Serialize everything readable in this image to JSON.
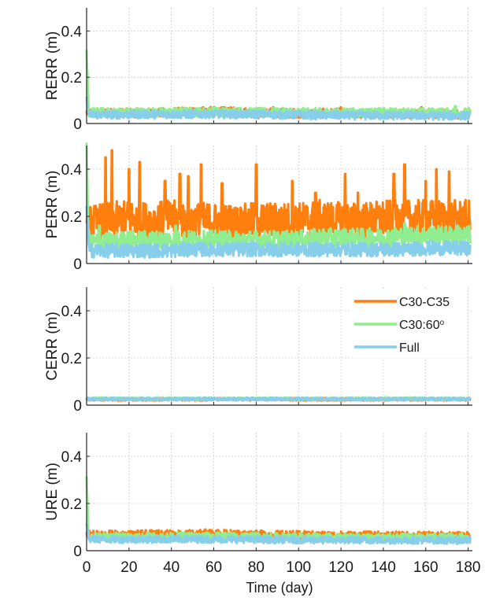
{
  "chart_data": [
    {
      "type": "line",
      "ylabel": "RERR (m)",
      "xlim": [
        0,
        182
      ],
      "ylim": [
        0,
        0.5
      ],
      "yticks": [
        "0",
        "0.2",
        "0.4"
      ],
      "grid": true,
      "x_days": [
        0,
        1,
        2,
        3,
        10,
        20,
        30,
        40,
        50,
        60,
        70,
        80,
        90,
        100,
        110,
        120,
        130,
        140,
        150,
        160,
        170,
        181
      ],
      "series": [
        {
          "name": "C30-C35",
          "color": "#ff7f0e",
          "mean": [
            0.05,
            0.045,
            0.045,
            0.045,
            0.045,
            0.046,
            0.047,
            0.048,
            0.05,
            0.052,
            0.05,
            0.048,
            0.046,
            0.045,
            0.044,
            0.044,
            0.043,
            0.043,
            0.042,
            0.042,
            0.041,
            0.04
          ],
          "spread": 0.02,
          "spikes": [
            [
              36,
              0.065
            ],
            [
              55,
              0.07
            ],
            [
              88,
              0.07
            ],
            [
              120,
              0.07
            ],
            [
              158,
              0.07
            ]
          ]
        },
        {
          "name": "C30:60°",
          "color": "#90ee90",
          "mean": [
            0.3,
            0.05,
            0.048,
            0.048,
            0.048,
            0.048,
            0.048,
            0.048,
            0.05,
            0.05,
            0.05,
            0.048,
            0.048,
            0.048,
            0.047,
            0.047,
            0.047,
            0.047,
            0.047,
            0.047,
            0.047,
            0.047
          ],
          "spread": 0.02,
          "spikes": [
            [
              3,
              0.06
            ],
            [
              10,
              0.065
            ],
            [
              84,
              0.065
            ],
            [
              174,
              0.075
            ]
          ]
        },
        {
          "name": "Full",
          "color": "#87ceeb",
          "mean": [
            0.1,
            0.04,
            0.038,
            0.038,
            0.038,
            0.039,
            0.04,
            0.04,
            0.04,
            0.041,
            0.04,
            0.04,
            0.038,
            0.037,
            0.036,
            0.036,
            0.035,
            0.035,
            0.035,
            0.034,
            0.034,
            0.034
          ],
          "spread": 0.018,
          "spikes": []
        }
      ]
    },
    {
      "type": "line",
      "ylabel": "PERR (m)",
      "xlim": [
        0,
        182
      ],
      "ylim": [
        0,
        0.5
      ],
      "yticks": [
        "0",
        "0.2",
        "0.4"
      ],
      "grid": true,
      "x_days": [
        0,
        1,
        2,
        3,
        10,
        20,
        30,
        40,
        50,
        60,
        70,
        80,
        90,
        100,
        110,
        120,
        130,
        140,
        150,
        160,
        170,
        181
      ],
      "series": [
        {
          "name": "C30-C35",
          "color": "#ff7f0e",
          "mean": [
            0.25,
            0.16,
            0.17,
            0.17,
            0.18,
            0.19,
            0.18,
            0.19,
            0.18,
            0.18,
            0.17,
            0.18,
            0.18,
            0.18,
            0.19,
            0.18,
            0.18,
            0.19,
            0.19,
            0.19,
            0.19,
            0.19
          ],
          "spread": 0.08,
          "spikes": [
            [
              9,
              0.45
            ],
            [
              12,
              0.48
            ],
            [
              20,
              0.4
            ],
            [
              25,
              0.43
            ],
            [
              37,
              0.35
            ],
            [
              44,
              0.38
            ],
            [
              48,
              0.37
            ],
            [
              54,
              0.42
            ],
            [
              64,
              0.34
            ],
            [
              80,
              0.42
            ],
            [
              97,
              0.35
            ],
            [
              108,
              0.3
            ],
            [
              122,
              0.38
            ],
            [
              128,
              0.3
            ],
            [
              145,
              0.38
            ],
            [
              150,
              0.42
            ],
            [
              160,
              0.35
            ],
            [
              165,
              0.4
            ],
            [
              171,
              0.39
            ]
          ]
        },
        {
          "name": "C30:60°",
          "color": "#90ee90",
          "mean": [
            0.48,
            0.1,
            0.09,
            0.09,
            0.09,
            0.1,
            0.1,
            0.1,
            0.1,
            0.1,
            0.1,
            0.1,
            0.1,
            0.1,
            0.11,
            0.11,
            0.11,
            0.11,
            0.12,
            0.12,
            0.12,
            0.12
          ],
          "spread": 0.04,
          "spikes": [
            [
              6,
              0.16
            ],
            [
              42,
              0.16
            ],
            [
              150,
              0.17
            ],
            [
              175,
              0.16
            ]
          ]
        },
        {
          "name": "Full",
          "color": "#87ceeb",
          "mean": [
            0.25,
            0.06,
            0.055,
            0.055,
            0.055,
            0.055,
            0.055,
            0.055,
            0.06,
            0.06,
            0.06,
            0.06,
            0.06,
            0.06,
            0.06,
            0.06,
            0.06,
            0.06,
            0.06,
            0.065,
            0.065,
            0.065
          ],
          "spread": 0.03,
          "spikes": []
        }
      ]
    },
    {
      "type": "line",
      "ylabel": "CERR (m)",
      "xlim": [
        0,
        182
      ],
      "ylim": [
        0,
        0.5
      ],
      "yticks": [
        "0",
        "0.2",
        "0.4"
      ],
      "grid": true,
      "x_days": [
        0,
        1,
        2,
        3,
        10,
        20,
        30,
        40,
        50,
        60,
        70,
        80,
        90,
        100,
        110,
        120,
        130,
        140,
        150,
        160,
        170,
        181
      ],
      "series": [
        {
          "name": "C30-C35",
          "color": "#ff7f0e",
          "mean": [
            0.025,
            0.025,
            0.025,
            0.025,
            0.025,
            0.025,
            0.025,
            0.025,
            0.025,
            0.025,
            0.025,
            0.025,
            0.025,
            0.025,
            0.025,
            0.025,
            0.025,
            0.025,
            0.025,
            0.025,
            0.025,
            0.025
          ],
          "spread": 0.006,
          "spikes": []
        },
        {
          "name": "C30:60°",
          "color": "#90ee90",
          "mean": [
            0.027,
            0.027,
            0.027,
            0.027,
            0.027,
            0.027,
            0.027,
            0.027,
            0.027,
            0.027,
            0.027,
            0.027,
            0.027,
            0.027,
            0.027,
            0.027,
            0.027,
            0.027,
            0.027,
            0.027,
            0.027,
            0.027
          ],
          "spread": 0.006,
          "spikes": []
        },
        {
          "name": "Full",
          "color": "#87ceeb",
          "mean": [
            0.026,
            0.026,
            0.026,
            0.026,
            0.026,
            0.026,
            0.026,
            0.026,
            0.026,
            0.026,
            0.026,
            0.026,
            0.026,
            0.026,
            0.026,
            0.026,
            0.026,
            0.026,
            0.026,
            0.026,
            0.026,
            0.026
          ],
          "spread": 0.006,
          "spikes": []
        }
      ],
      "legend": {
        "location": "top-right",
        "entries": [
          "C30-C35",
          "C30:60",
          "Full"
        ],
        "superscript": "o"
      }
    },
    {
      "type": "line",
      "ylabel": "URE (m)",
      "xlabel": "Time (day)",
      "xlim": [
        0,
        182
      ],
      "ylim": [
        0,
        0.5
      ],
      "yticks": [
        "0",
        "0.2",
        "0.4"
      ],
      "xticks": [
        "0",
        "20",
        "40",
        "60",
        "80",
        "100",
        "120",
        "140",
        "160",
        "180"
      ],
      "grid": true,
      "x_days": [
        0,
        1,
        2,
        3,
        10,
        20,
        30,
        40,
        50,
        60,
        70,
        80,
        90,
        100,
        110,
        120,
        130,
        140,
        150,
        160,
        170,
        181
      ],
      "series": [
        {
          "name": "C30-C35",
          "color": "#ff7f0e",
          "mean": [
            0.07,
            0.065,
            0.065,
            0.065,
            0.065,
            0.066,
            0.067,
            0.068,
            0.068,
            0.07,
            0.068,
            0.066,
            0.065,
            0.064,
            0.063,
            0.063,
            0.062,
            0.062,
            0.061,
            0.061,
            0.06,
            0.06
          ],
          "spread": 0.02,
          "spikes": [
            [
              11,
              0.085
            ],
            [
              56,
              0.09
            ],
            [
              80,
              0.085
            ],
            [
              104,
              0.08
            ]
          ]
        },
        {
          "name": "C30:60°",
          "color": "#90ee90",
          "mean": [
            0.3,
            0.06,
            0.058,
            0.058,
            0.058,
            0.058,
            0.058,
            0.058,
            0.06,
            0.06,
            0.06,
            0.058,
            0.057,
            0.056,
            0.056,
            0.056,
            0.055,
            0.055,
            0.055,
            0.055,
            0.055,
            0.055
          ],
          "spread": 0.018,
          "spikes": []
        },
        {
          "name": "Full",
          "color": "#87ceeb",
          "mean": [
            0.12,
            0.05,
            0.048,
            0.048,
            0.048,
            0.048,
            0.048,
            0.048,
            0.048,
            0.048,
            0.048,
            0.047,
            0.046,
            0.046,
            0.045,
            0.045,
            0.045,
            0.044,
            0.044,
            0.044,
            0.044,
            0.044
          ],
          "spread": 0.015,
          "spikes": []
        }
      ]
    }
  ]
}
